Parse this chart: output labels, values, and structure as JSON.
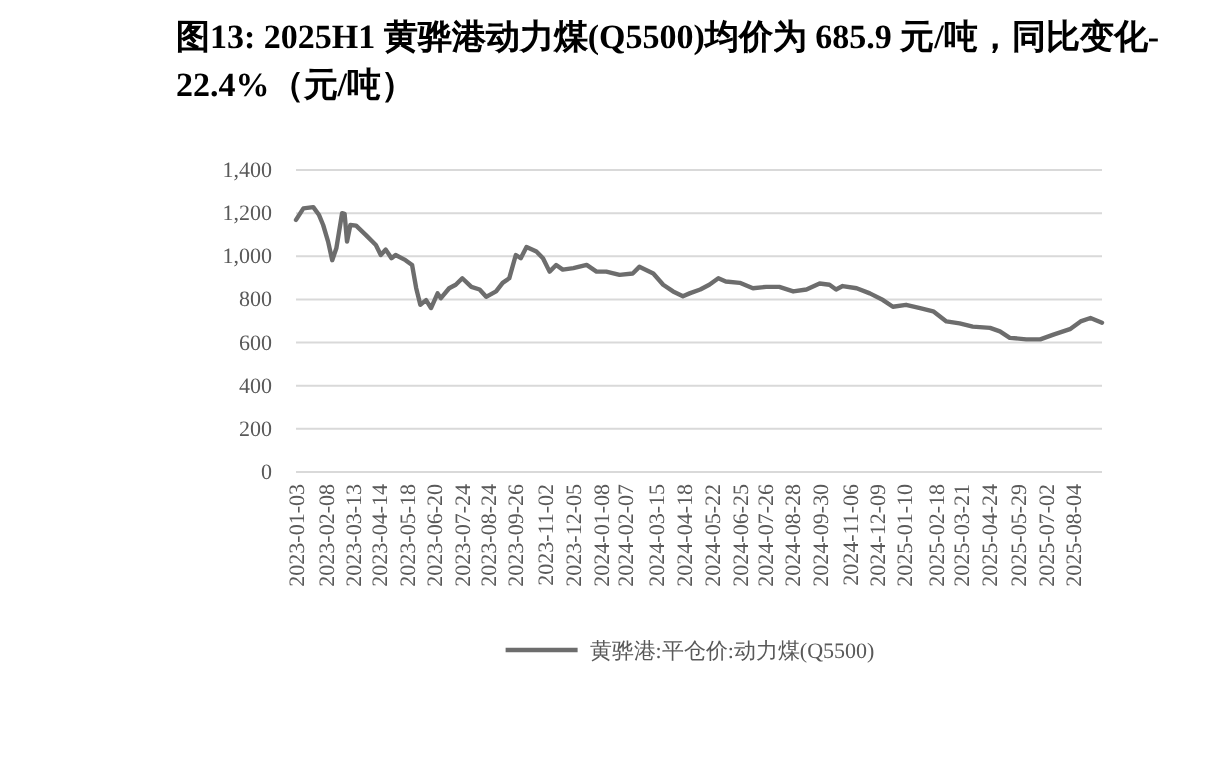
{
  "chart_data": {
    "type": "line",
    "title": "图13: 2025H1 黄骅港动力煤(Q5500)均价为 685.9 元/吨，同比变化-22.4%（元/吨）",
    "x": [
      "2023-01-03",
      "2023-01-12",
      "2023-01-24",
      "2023-01-31",
      "2023-02-05",
      "2023-02-11",
      "2023-02-16",
      "2023-02-21",
      "2023-02-28",
      "2023-03-03",
      "2023-03-06",
      "2023-03-10",
      "2023-03-17",
      "2023-03-29",
      "2023-04-10",
      "2023-04-16",
      "2023-04-22",
      "2023-04-29",
      "2023-05-04",
      "2023-05-16",
      "2023-05-24",
      "2023-05-29",
      "2023-06-03",
      "2023-06-10",
      "2023-06-16",
      "2023-06-24",
      "2023-06-28",
      "2023-07-08",
      "2023-07-16",
      "2023-07-24",
      "2023-08-04",
      "2023-08-14",
      "2023-08-22",
      "2023-09-03",
      "2023-09-11",
      "2023-09-19",
      "2023-09-27",
      "2023-10-03",
      "2023-10-10",
      "2023-10-22",
      "2023-10-30",
      "2023-11-07",
      "2023-11-15",
      "2023-11-23",
      "2023-12-06",
      "2023-12-22",
      "2024-01-03",
      "2024-01-15",
      "2024-01-31",
      "2024-02-16",
      "2024-02-24",
      "2024-03-12",
      "2024-03-24",
      "2024-04-05",
      "2024-04-17",
      "2024-04-25",
      "2024-05-08",
      "2024-05-19",
      "2024-05-30",
      "2024-06-08",
      "2024-06-25",
      "2024-07-11",
      "2024-07-27",
      "2024-08-12",
      "2024-08-29",
      "2024-09-14",
      "2024-09-30",
      "2024-10-12",
      "2024-10-20",
      "2024-10-28",
      "2024-11-14",
      "2024-11-30",
      "2024-12-16",
      "2024-12-28",
      "2025-01-13",
      "2025-01-30",
      "2025-02-15",
      "2025-03-03",
      "2025-03-19",
      "2025-04-04",
      "2025-04-25",
      "2025-05-07",
      "2025-05-19",
      "2025-06-08",
      "2025-06-25",
      "2025-07-11",
      "2025-07-31",
      "2025-08-13",
      "2025-08-25",
      "2025-09-08"
    ],
    "series": [
      {
        "name": "黄骅港:平仓价:动力煤(Q5500)",
        "color": "#6d6d6d",
        "values": [
          1169,
          1222,
          1228,
          1191,
          1145,
          1068,
          982,
          1037,
          1200,
          1197,
          1068,
          1145,
          1142,
          1098,
          1052,
          1006,
          1031,
          991,
          1006,
          982,
          960,
          852,
          775,
          797,
          760,
          828,
          806,
          852,
          868,
          898,
          858,
          846,
          812,
          837,
          877,
          898,
          1006,
          991,
          1043,
          1022,
          991,
          929,
          960,
          938,
          945,
          960,
          929,
          929,
          914,
          920,
          951,
          920,
          868,
          837,
          815,
          828,
          846,
          868,
          898,
          883,
          877,
          852,
          858,
          858,
          837,
          846,
          874,
          868,
          846,
          862,
          852,
          828,
          797,
          766,
          775,
          760,
          745,
          698,
          689,
          674,
          668,
          652,
          622,
          615,
          615,
          637,
          662,
          698,
          714,
          692
        ]
      }
    ],
    "xlim": [
      "2023-01-03",
      "2025-09-08"
    ],
    "xticks": [
      "2023-01-03",
      "2023-02-08",
      "2023-03-13",
      "2023-04-14",
      "2023-05-18",
      "2023-06-20",
      "2023-07-24",
      "2023-08-24",
      "2023-09-26",
      "2023-11-02",
      "2023-12-05",
      "2024-01-08",
      "2024-02-07",
      "2024-03-15",
      "2024-04-18",
      "2024-05-22",
      "2024-06-25",
      "2024-07-26",
      "2024-08-28",
      "2024-09-30",
      "2024-11-06",
      "2024-12-09",
      "2025-01-10",
      "2025-02-18",
      "2025-03-21",
      "2025-04-24",
      "2025-05-29",
      "2025-07-02",
      "2025-08-04"
    ],
    "ylim": [
      0,
      1400
    ],
    "yticks": [
      0,
      {
        "value": 200,
        "label": "200"
      },
      {
        "value": 400,
        "label": "400"
      },
      {
        "value": 600,
        "label": "600"
      },
      {
        "value": 800,
        "label": "800"
      },
      {
        "value": 1000,
        "label": "1,000"
      },
      {
        "value": 1200,
        "label": "1,200"
      },
      {
        "value": 1400,
        "label": "1,400"
      }
    ],
    "grid": "y",
    "legend": "bottom"
  }
}
